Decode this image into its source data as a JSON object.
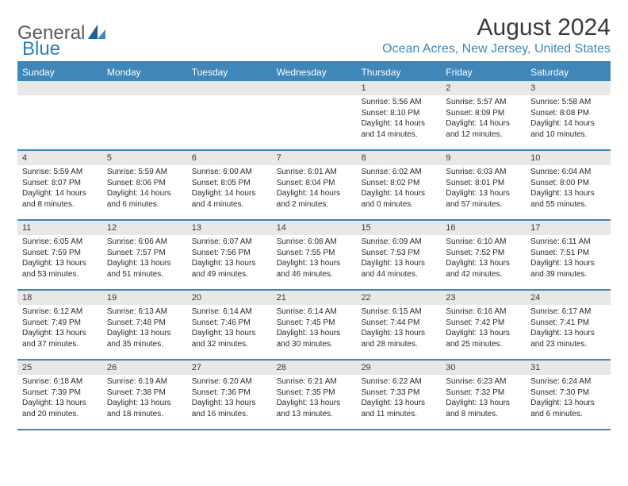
{
  "logo": {
    "text_general": "General",
    "text_blue": "Blue"
  },
  "title": "August 2024",
  "location": "Ocean Acres, New Jersey, United States",
  "colors": {
    "header_bg": "#3e87b8",
    "header_text": "#ffffff",
    "daynum_bg": "#e8e8e8",
    "border": "#3e87b8",
    "title_text": "#3a3a3a",
    "location_text": "#3e87b8",
    "body_text": "#2a2a2a",
    "logo_gray": "#5a5a5a",
    "logo_blue": "#2a7fbf"
  },
  "typography": {
    "month_title_fontsize": 30,
    "location_fontsize": 16,
    "day_header_fontsize": 12,
    "daynum_fontsize": 11,
    "cell_fontsize": 10
  },
  "day_names": [
    "Sunday",
    "Monday",
    "Tuesday",
    "Wednesday",
    "Thursday",
    "Friday",
    "Saturday"
  ],
  "weeks": [
    [
      {
        "n": "",
        "sr": "",
        "ss": "",
        "dl": ""
      },
      {
        "n": "",
        "sr": "",
        "ss": "",
        "dl": ""
      },
      {
        "n": "",
        "sr": "",
        "ss": "",
        "dl": ""
      },
      {
        "n": "",
        "sr": "",
        "ss": "",
        "dl": ""
      },
      {
        "n": "1",
        "sr": "Sunrise: 5:56 AM",
        "ss": "Sunset: 8:10 PM",
        "dl": "Daylight: 14 hours and 14 minutes."
      },
      {
        "n": "2",
        "sr": "Sunrise: 5:57 AM",
        "ss": "Sunset: 8:09 PM",
        "dl": "Daylight: 14 hours and 12 minutes."
      },
      {
        "n": "3",
        "sr": "Sunrise: 5:58 AM",
        "ss": "Sunset: 8:08 PM",
        "dl": "Daylight: 14 hours and 10 minutes."
      }
    ],
    [
      {
        "n": "4",
        "sr": "Sunrise: 5:59 AM",
        "ss": "Sunset: 8:07 PM",
        "dl": "Daylight: 14 hours and 8 minutes."
      },
      {
        "n": "5",
        "sr": "Sunrise: 5:59 AM",
        "ss": "Sunset: 8:06 PM",
        "dl": "Daylight: 14 hours and 6 minutes."
      },
      {
        "n": "6",
        "sr": "Sunrise: 6:00 AM",
        "ss": "Sunset: 8:05 PM",
        "dl": "Daylight: 14 hours and 4 minutes."
      },
      {
        "n": "7",
        "sr": "Sunrise: 6:01 AM",
        "ss": "Sunset: 8:04 PM",
        "dl": "Daylight: 14 hours and 2 minutes."
      },
      {
        "n": "8",
        "sr": "Sunrise: 6:02 AM",
        "ss": "Sunset: 8:02 PM",
        "dl": "Daylight: 14 hours and 0 minutes."
      },
      {
        "n": "9",
        "sr": "Sunrise: 6:03 AM",
        "ss": "Sunset: 8:01 PM",
        "dl": "Daylight: 13 hours and 57 minutes."
      },
      {
        "n": "10",
        "sr": "Sunrise: 6:04 AM",
        "ss": "Sunset: 8:00 PM",
        "dl": "Daylight: 13 hours and 55 minutes."
      }
    ],
    [
      {
        "n": "11",
        "sr": "Sunrise: 6:05 AM",
        "ss": "Sunset: 7:59 PM",
        "dl": "Daylight: 13 hours and 53 minutes."
      },
      {
        "n": "12",
        "sr": "Sunrise: 6:06 AM",
        "ss": "Sunset: 7:57 PM",
        "dl": "Daylight: 13 hours and 51 minutes."
      },
      {
        "n": "13",
        "sr": "Sunrise: 6:07 AM",
        "ss": "Sunset: 7:56 PM",
        "dl": "Daylight: 13 hours and 49 minutes."
      },
      {
        "n": "14",
        "sr": "Sunrise: 6:08 AM",
        "ss": "Sunset: 7:55 PM",
        "dl": "Daylight: 13 hours and 46 minutes."
      },
      {
        "n": "15",
        "sr": "Sunrise: 6:09 AM",
        "ss": "Sunset: 7:53 PM",
        "dl": "Daylight: 13 hours and 44 minutes."
      },
      {
        "n": "16",
        "sr": "Sunrise: 6:10 AM",
        "ss": "Sunset: 7:52 PM",
        "dl": "Daylight: 13 hours and 42 minutes."
      },
      {
        "n": "17",
        "sr": "Sunrise: 6:11 AM",
        "ss": "Sunset: 7:51 PM",
        "dl": "Daylight: 13 hours and 39 minutes."
      }
    ],
    [
      {
        "n": "18",
        "sr": "Sunrise: 6:12 AM",
        "ss": "Sunset: 7:49 PM",
        "dl": "Daylight: 13 hours and 37 minutes."
      },
      {
        "n": "19",
        "sr": "Sunrise: 6:13 AM",
        "ss": "Sunset: 7:48 PM",
        "dl": "Daylight: 13 hours and 35 minutes."
      },
      {
        "n": "20",
        "sr": "Sunrise: 6:14 AM",
        "ss": "Sunset: 7:46 PM",
        "dl": "Daylight: 13 hours and 32 minutes."
      },
      {
        "n": "21",
        "sr": "Sunrise: 6:14 AM",
        "ss": "Sunset: 7:45 PM",
        "dl": "Daylight: 13 hours and 30 minutes."
      },
      {
        "n": "22",
        "sr": "Sunrise: 6:15 AM",
        "ss": "Sunset: 7:44 PM",
        "dl": "Daylight: 13 hours and 28 minutes."
      },
      {
        "n": "23",
        "sr": "Sunrise: 6:16 AM",
        "ss": "Sunset: 7:42 PM",
        "dl": "Daylight: 13 hours and 25 minutes."
      },
      {
        "n": "24",
        "sr": "Sunrise: 6:17 AM",
        "ss": "Sunset: 7:41 PM",
        "dl": "Daylight: 13 hours and 23 minutes."
      }
    ],
    [
      {
        "n": "25",
        "sr": "Sunrise: 6:18 AM",
        "ss": "Sunset: 7:39 PM",
        "dl": "Daylight: 13 hours and 20 minutes."
      },
      {
        "n": "26",
        "sr": "Sunrise: 6:19 AM",
        "ss": "Sunset: 7:38 PM",
        "dl": "Daylight: 13 hours and 18 minutes."
      },
      {
        "n": "27",
        "sr": "Sunrise: 6:20 AM",
        "ss": "Sunset: 7:36 PM",
        "dl": "Daylight: 13 hours and 16 minutes."
      },
      {
        "n": "28",
        "sr": "Sunrise: 6:21 AM",
        "ss": "Sunset: 7:35 PM",
        "dl": "Daylight: 13 hours and 13 minutes."
      },
      {
        "n": "29",
        "sr": "Sunrise: 6:22 AM",
        "ss": "Sunset: 7:33 PM",
        "dl": "Daylight: 13 hours and 11 minutes."
      },
      {
        "n": "30",
        "sr": "Sunrise: 6:23 AM",
        "ss": "Sunset: 7:32 PM",
        "dl": "Daylight: 13 hours and 8 minutes."
      },
      {
        "n": "31",
        "sr": "Sunrise: 6:24 AM",
        "ss": "Sunset: 7:30 PM",
        "dl": "Daylight: 13 hours and 6 minutes."
      }
    ]
  ]
}
